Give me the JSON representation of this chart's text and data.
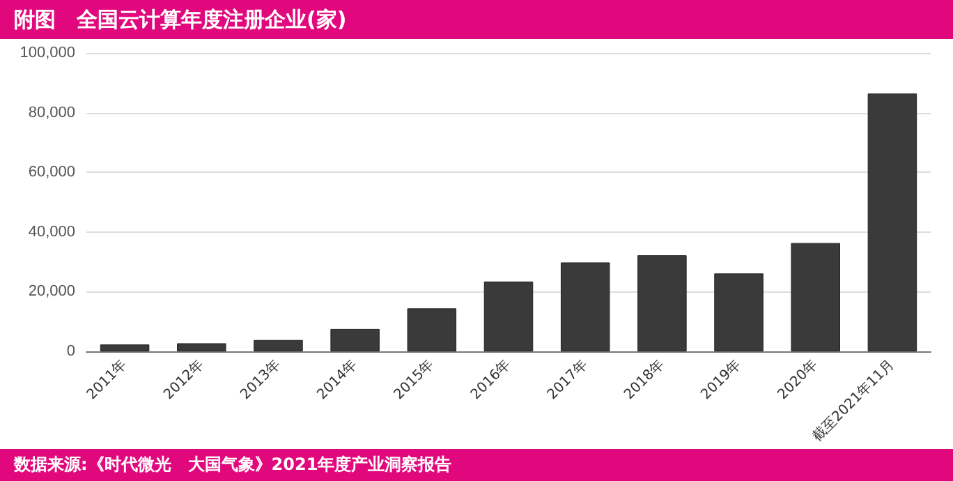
{
  "chart_data": {
    "type": "bar",
    "title": "附图　全国云计算年度注册企业(家)",
    "categories": [
      "2011年",
      "2012年",
      "2013年",
      "2014年",
      "2015年",
      "2016年",
      "2017年",
      "2018年",
      "2019年",
      "2020年",
      "截至2021年11月"
    ],
    "values": [
      2300,
      2700,
      3800,
      7500,
      14400,
      23400,
      29800,
      32200,
      26100,
      36300,
      86400
    ],
    "color": "#3a3a3a",
    "ylim": [
      0,
      100000
    ],
    "yticks": [
      0,
      {
        "value": 20000,
        "label": "20,000"
      },
      {
        "value": 40000,
        "label": "40,000"
      },
      {
        "value": 60000,
        "label": "60,000"
      },
      {
        "value": 80000,
        "label": "80,000"
      },
      {
        "value": 100000,
        "label": "100,000"
      }
    ],
    "grid": "y",
    "annotations": [
      "数据来源:《时代微光　大国气象》2021年度产业洞察报告"
    ]
  }
}
